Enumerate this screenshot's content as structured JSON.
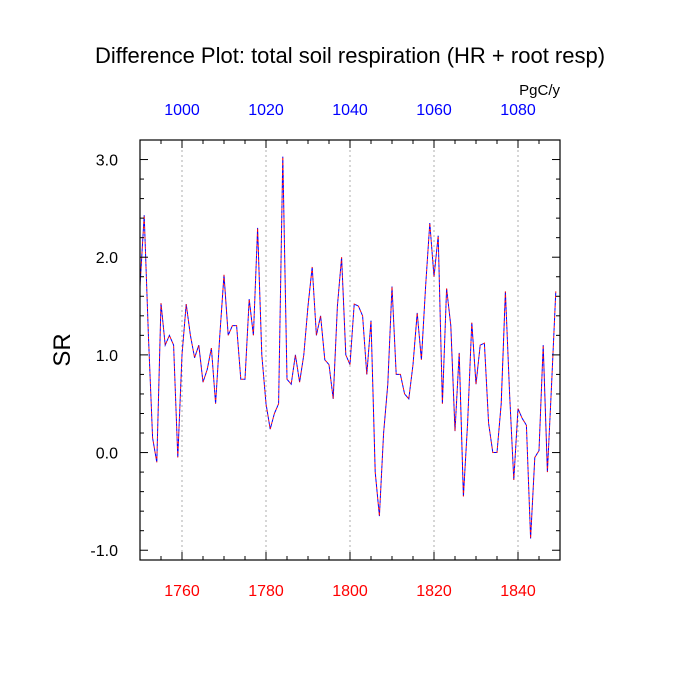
{
  "chart_data": {
    "type": "line",
    "title": "Difference Plot: total soil respiration (HR + root resp)",
    "units": "PgC/y",
    "ylabel": "SR",
    "xlim": [
      1750,
      1850
    ],
    "ylim": [
      -1.1,
      3.2
    ],
    "bottom_axis": {
      "ticks": [
        1760,
        1780,
        1800,
        1820,
        1840
      ],
      "labels": [
        "1760",
        "1780",
        "1800",
        "1820",
        "1840"
      ],
      "color": "#ff0000"
    },
    "top_axis": {
      "ticks": [
        1000,
        1020,
        1040,
        1060,
        1080
      ],
      "labels": [
        "1000",
        "1020",
        "1040",
        "1060",
        "1080"
      ],
      "color": "#0000ff"
    },
    "y_ticks": [
      -1.0,
      0.0,
      1.0,
      2.0,
      3.0
    ],
    "y_labels": [
      "-1.0",
      "0.0",
      "1.0",
      "2.0",
      "3.0"
    ],
    "grid": "vertical-dotted",
    "series": [
      {
        "color": "#0000ff",
        "x": [
          1750,
          1751,
          1752,
          1753,
          1754,
          1755,
          1756,
          1757,
          1758,
          1759,
          1760,
          1761,
          1762,
          1763,
          1764,
          1765,
          1766,
          1767,
          1768,
          1769,
          1770,
          1771,
          1772,
          1773,
          1774,
          1775,
          1776,
          1777,
          1778,
          1779,
          1780,
          1781,
          1782,
          1783,
          1784,
          1785,
          1786,
          1787,
          1788,
          1789,
          1790,
          1791,
          1792,
          1793,
          1794,
          1795,
          1796,
          1797,
          1798,
          1799,
          1800,
          1801,
          1802,
          1803,
          1804,
          1805,
          1806,
          1807,
          1808,
          1809,
          1810,
          1811,
          1812,
          1813,
          1814,
          1815,
          1816,
          1817,
          1818,
          1819,
          1820,
          1821,
          1822,
          1823,
          1824,
          1825,
          1826,
          1827,
          1828,
          1829,
          1830,
          1831,
          1832,
          1833,
          1834,
          1835,
          1836,
          1837,
          1838,
          1839,
          1840,
          1841,
          1842,
          1843,
          1844,
          1845,
          1846,
          1847,
          1848,
          1849
        ],
        "values": [
          1.7,
          2.43,
          1.2,
          0.15,
          -0.1,
          1.53,
          1.1,
          1.2,
          1.1,
          -0.05,
          1.0,
          1.52,
          1.2,
          0.97,
          1.1,
          0.72,
          0.85,
          1.07,
          0.5,
          1.2,
          1.82,
          1.2,
          1.3,
          1.3,
          0.75,
          0.75,
          1.57,
          1.2,
          2.3,
          1.0,
          0.5,
          0.24,
          0.4,
          0.5,
          3.03,
          0.75,
          0.7,
          1.0,
          0.72,
          1.0,
          1.5,
          1.9,
          1.2,
          1.4,
          0.95,
          0.9,
          0.55,
          1.5,
          2.0,
          1.0,
          0.9,
          1.52,
          1.5,
          1.4,
          0.8,
          1.35,
          -0.2,
          -0.65,
          0.2,
          0.7,
          1.7,
          0.8,
          0.8,
          0.6,
          0.55,
          0.9,
          1.43,
          0.95,
          1.7,
          2.35,
          1.8,
          2.22,
          0.5,
          1.68,
          1.3,
          0.22,
          1.02,
          -0.45,
          0.3,
          1.33,
          0.7,
          1.1,
          1.12,
          0.3,
          0.0,
          0.0,
          0.5,
          1.65,
          0.6,
          -0.28,
          0.45,
          0.35,
          0.28,
          -0.88,
          -0.05,
          0.02,
          1.1,
          -0.2,
          0.7,
          1.65
        ]
      },
      {
        "color": "#ff0000",
        "x": [
          1750,
          1751,
          1752,
          1753,
          1754,
          1755,
          1756,
          1757,
          1758,
          1759,
          1760,
          1761,
          1762,
          1763,
          1764,
          1765,
          1766,
          1767,
          1768,
          1769,
          1770,
          1771,
          1772,
          1773,
          1774,
          1775,
          1776,
          1777,
          1778,
          1779,
          1780,
          1781,
          1782,
          1783,
          1784,
          1785,
          1786,
          1787,
          1788,
          1789,
          1790,
          1791,
          1792,
          1793,
          1794,
          1795,
          1796,
          1797,
          1798,
          1799,
          1800,
          1801,
          1802,
          1803,
          1804,
          1805,
          1806,
          1807,
          1808,
          1809,
          1810,
          1811,
          1812,
          1813,
          1814,
          1815,
          1816,
          1817,
          1818,
          1819,
          1820,
          1821,
          1822,
          1823,
          1824,
          1825,
          1826,
          1827,
          1828,
          1829,
          1830,
          1831,
          1832,
          1833,
          1834,
          1835,
          1836,
          1837,
          1838,
          1839,
          1840,
          1841,
          1842,
          1843,
          1844,
          1845,
          1846,
          1847,
          1848,
          1849
        ],
        "values": [
          1.7,
          2.43,
          1.2,
          0.15,
          -0.1,
          1.53,
          1.1,
          1.2,
          1.1,
          -0.05,
          1.0,
          1.52,
          1.2,
          0.97,
          1.1,
          0.72,
          0.85,
          1.07,
          0.5,
          1.2,
          1.82,
          1.2,
          1.3,
          1.3,
          0.75,
          0.75,
          1.57,
          1.2,
          2.3,
          1.0,
          0.5,
          0.24,
          0.4,
          0.5,
          3.03,
          0.75,
          0.7,
          1.0,
          0.72,
          1.0,
          1.5,
          1.9,
          1.2,
          1.4,
          0.95,
          0.9,
          0.55,
          1.5,
          2.0,
          1.0,
          0.9,
          1.52,
          1.5,
          1.4,
          0.8,
          1.35,
          -0.2,
          -0.65,
          0.2,
          0.7,
          1.7,
          0.8,
          0.8,
          0.6,
          0.55,
          0.9,
          1.43,
          0.95,
          1.7,
          2.35,
          1.8,
          2.22,
          0.5,
          1.68,
          1.3,
          0.22,
          1.02,
          -0.45,
          0.3,
          1.33,
          0.7,
          1.1,
          1.12,
          0.3,
          0.0,
          0.0,
          0.5,
          1.65,
          0.6,
          -0.28,
          0.45,
          0.35,
          0.28,
          -0.88,
          -0.05,
          0.02,
          1.1,
          -0.2,
          0.7,
          1.65
        ]
      }
    ]
  }
}
